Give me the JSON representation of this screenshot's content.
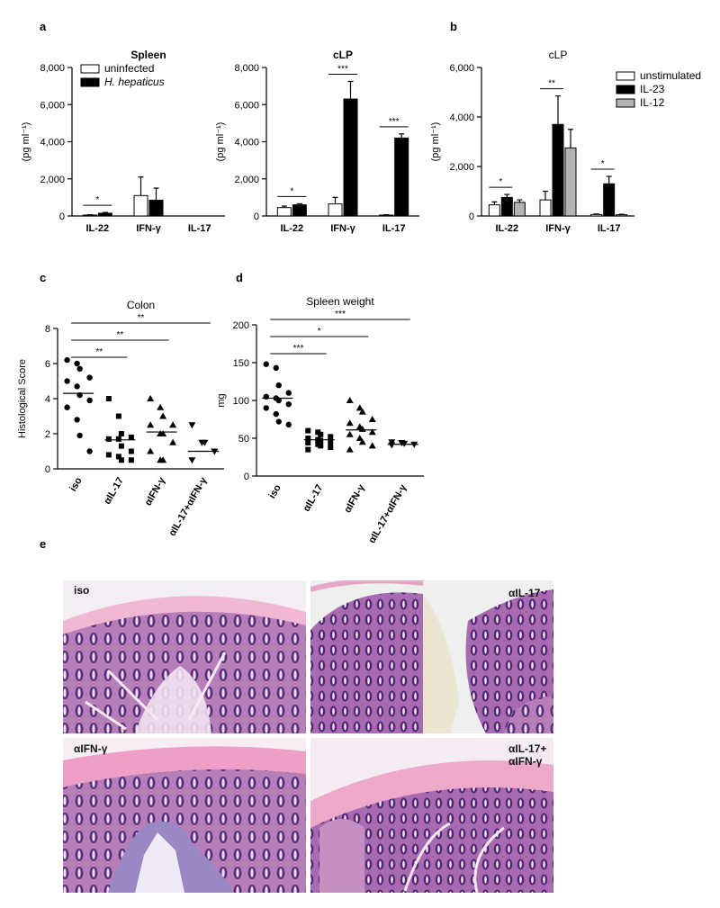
{
  "panel_labels": {
    "a": "a",
    "b": "b",
    "c": "c",
    "d": "d",
    "e": "e"
  },
  "chart_data": [
    {
      "id": "a-spleen",
      "type": "bar",
      "title": "Spleen",
      "ylabel": "(pg ml⁻¹)",
      "ylim": [
        0,
        8000
      ],
      "yticks": [
        "0",
        "2,000",
        "4,000",
        "6,000",
        "8,000"
      ],
      "categories": [
        "IL-22",
        "IFN-γ",
        "IL-17"
      ],
      "series": [
        {
          "name": "uninfected",
          "color": "#ffffff",
          "values": [
            50,
            1100,
            0
          ],
          "errors": [
            20,
            1000,
            0
          ]
        },
        {
          "name": "H. hepaticus",
          "color": "#000000",
          "values": [
            150,
            850,
            0
          ],
          "errors": [
            40,
            650,
            0
          ]
        }
      ],
      "legend": {
        "placement": "top-left"
      },
      "significance": [
        {
          "category": 0,
          "label": "*"
        }
      ]
    },
    {
      "id": "a-clp",
      "type": "bar",
      "title": "cLP",
      "ylabel": "(pg ml⁻¹)",
      "ylim": [
        0,
        8000
      ],
      "yticks": [
        "0",
        "2,000",
        "4,000",
        "6,000",
        "8,000"
      ],
      "categories": [
        "IL-22",
        "IFN-γ",
        "IL-17"
      ],
      "series": [
        {
          "name": "uninfected",
          "color": "#ffffff",
          "values": [
            450,
            650,
            50
          ],
          "errors": [
            80,
            350,
            20
          ]
        },
        {
          "name": "H. hepaticus",
          "color": "#000000",
          "values": [
            600,
            6300,
            4200
          ],
          "errors": [
            60,
            950,
            220
          ]
        }
      ],
      "significance": [
        {
          "category": 0,
          "label": "*"
        },
        {
          "category": 1,
          "label": "***"
        },
        {
          "category": 2,
          "label": "***"
        }
      ]
    },
    {
      "id": "b-clp",
      "type": "bar",
      "title": "cLP",
      "ylabel": "(pg ml⁻¹)",
      "ylim": [
        0,
        6000
      ],
      "yticks": [
        "0",
        "2,000",
        "4,000",
        "6,000"
      ],
      "categories": [
        "IL-22",
        "IFN-γ",
        "IL-17"
      ],
      "series": [
        {
          "name": "unstimulated",
          "color": "#ffffff",
          "values": [
            450,
            650,
            60
          ],
          "errors": [
            120,
            350,
            20
          ]
        },
        {
          "name": "IL-23",
          "color": "#000000",
          "values": [
            750,
            3700,
            1300
          ],
          "errors": [
            120,
            1150,
            300
          ]
        },
        {
          "name": "IL-12",
          "color": "#b3b3b3",
          "values": [
            550,
            2750,
            50
          ],
          "errors": [
            100,
            750,
            20
          ]
        }
      ],
      "legend": {
        "placement": "top-right"
      },
      "significance": [
        {
          "category": 0,
          "label": "*"
        },
        {
          "category": 1,
          "label": "**"
        },
        {
          "category": 2,
          "label": "*"
        }
      ]
    },
    {
      "id": "c-colon",
      "type": "scatter",
      "title": "Colon",
      "ylabel": "Histological Score",
      "ylim": [
        0,
        8
      ],
      "yticks": [
        "0",
        "2",
        "4",
        "6",
        "8"
      ],
      "categories": [
        "iso",
        "αIL-17",
        "αIFN-γ",
        "αIL-17+αIFN-γ"
      ],
      "groups": [
        {
          "category": "iso",
          "marker": "circle",
          "mean": 4.3,
          "points": [
            6.2,
            6.0,
            5.7,
            5.2,
            5.0,
            4.7,
            4.2,
            3.9,
            3.5,
            2.8,
            1.9,
            1.0
          ]
        },
        {
          "category": "αIL-17",
          "marker": "square",
          "mean": 1.65,
          "points": [
            4.0,
            3.0,
            2.0,
            1.8,
            1.7,
            1.7,
            1.3,
            1.0,
            0.8,
            0.7,
            0.5,
            0.5
          ]
        },
        {
          "category": "αIFN-γ",
          "marker": "triangle-up",
          "mean": 2.1,
          "points": [
            4.0,
            3.5,
            3.0,
            2.5,
            2.5,
            2.0,
            2.0,
            1.5,
            1.0,
            0.5,
            0.5
          ]
        },
        {
          "category": "αIL-17+αIFN-γ",
          "marker": "triangle-down",
          "mean": 1.0,
          "points": [
            2.5,
            1.5,
            1.5,
            1.0,
            0.5
          ]
        }
      ],
      "significance": [
        {
          "from": 0,
          "to": 1,
          "label": "**"
        },
        {
          "from": 0,
          "to": 2,
          "label": "**"
        },
        {
          "from": 0,
          "to": 3,
          "label": "**"
        }
      ]
    },
    {
      "id": "d-spleen-weight",
      "type": "scatter",
      "title": "Spleen weight",
      "ylabel": "mg",
      "ylim": [
        0,
        200
      ],
      "yticks": [
        "0",
        "50",
        "100",
        "150",
        "200"
      ],
      "categories": [
        "iso",
        "αIL-17",
        "αIFN-γ",
        "αIL-17+αIFN-γ"
      ],
      "groups": [
        {
          "category": "iso",
          "marker": "circle",
          "mean": 103,
          "points": [
            148,
            143,
            120,
            110,
            105,
            103,
            100,
            95,
            90,
            82,
            72,
            68
          ]
        },
        {
          "category": "αIL-17",
          "marker": "square",
          "mean": 48,
          "points": [
            60,
            58,
            55,
            52,
            50,
            48,
            47,
            45,
            44,
            42,
            40,
            38,
            35
          ]
        },
        {
          "category": "αIFN-γ",
          "marker": "triangle-up",
          "mean": 61,
          "points": [
            100,
            90,
            85,
            75,
            70,
            65,
            62,
            58,
            55,
            50,
            45,
            40,
            35
          ]
        },
        {
          "category": "αIL-17+αIFN-γ",
          "marker": "triangle-down",
          "mean": 42,
          "points": [
            45,
            44,
            43,
            42,
            41
          ]
        }
      ],
      "significance": [
        {
          "from": 0,
          "to": 1,
          "label": "***"
        },
        {
          "from": 0,
          "to": 2,
          "label": "*"
        },
        {
          "from": 0,
          "to": 3,
          "label": "***"
        }
      ]
    }
  ],
  "histology": [
    {
      "label": "iso"
    },
    {
      "label": "αIL-17"
    },
    {
      "label": "αIFN-γ"
    },
    {
      "label_line1": "αIL-17+",
      "label_line2": "αIFN-γ"
    }
  ],
  "colors": {
    "tissue_pink": "#e9a7c7",
    "tissue_purple": "#6f3f8f",
    "background": "#ffffff"
  }
}
